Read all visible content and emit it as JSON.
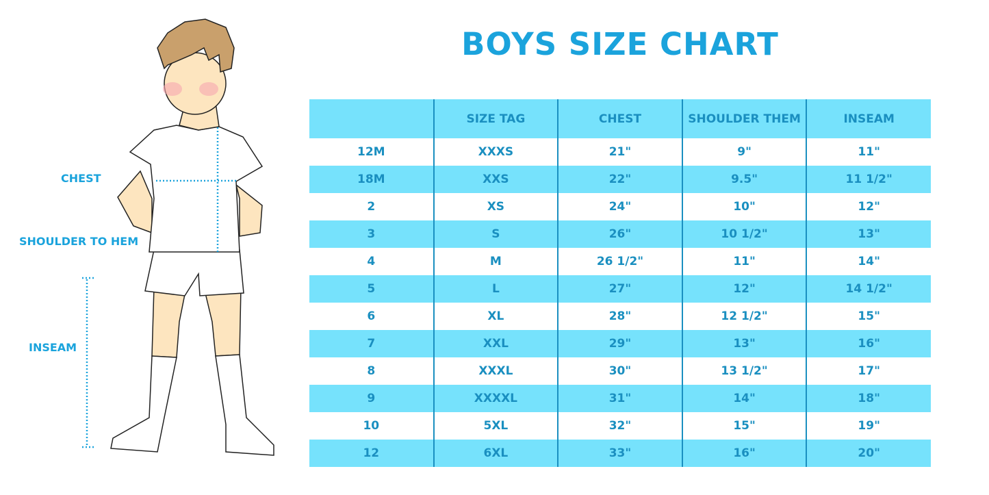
{
  "title": "BOYS SIZE CHART",
  "figure_labels": {
    "chest": "CHEST",
    "shoulder_to_hem": "SHOULDER TO HEM",
    "inseam": "INSEAM"
  },
  "colors": {
    "accent": "#1ba3dc",
    "row_stripe": "#76e2fc",
    "text": "#1a8fc0"
  },
  "table": {
    "headers": [
      "",
      "SIZE TAG",
      "CHEST",
      "SHOULDER THEM",
      "INSEAM"
    ],
    "rows": [
      [
        "12M",
        "XXXS",
        "21\"",
        "9\"",
        "11\""
      ],
      [
        "18M",
        "XXS",
        "22\"",
        "9.5\"",
        "11 1/2\""
      ],
      [
        "2",
        "XS",
        "24\"",
        "10\"",
        "12\""
      ],
      [
        "3",
        "S",
        "26\"",
        "10 1/2\"",
        "13\""
      ],
      [
        "4",
        "M",
        "26 1/2\"",
        "11\"",
        "14\""
      ],
      [
        "5",
        "L",
        "27\"",
        "12\"",
        "14 1/2\""
      ],
      [
        "6",
        "XL",
        "28\"",
        "12 1/2\"",
        "15\""
      ],
      [
        "7",
        "XXL",
        "29\"",
        "13\"",
        "16\""
      ],
      [
        "8",
        "XXXL",
        "30\"",
        "13 1/2\"",
        "17\""
      ],
      [
        "9",
        "XXXXL",
        "31\"",
        "14\"",
        "18\""
      ],
      [
        "10",
        "5XL",
        "32\"",
        "15\"",
        "19\""
      ],
      [
        "12",
        "6XL",
        "33\"",
        "16\"",
        "20\""
      ]
    ]
  }
}
